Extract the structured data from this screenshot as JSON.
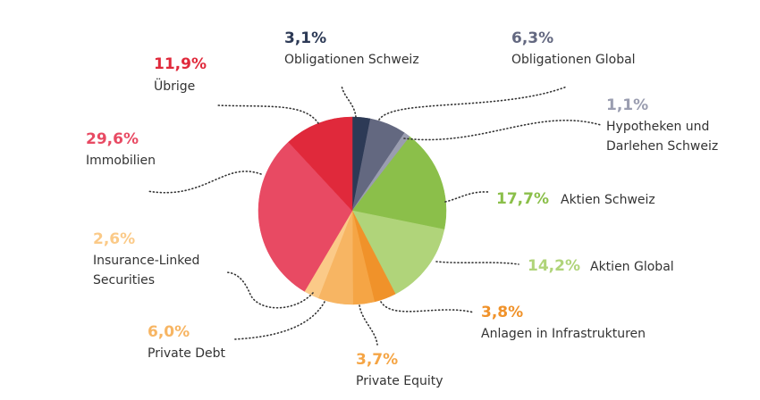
{
  "chart_data": {
    "type": "pie",
    "categories": [
      "Obligationen Schweiz",
      "Obligationen Global",
      "Hypotheken und Darlehen Schweiz",
      "Aktien Schweiz",
      "Aktien Global",
      "Anlagen in Infrastrukturen",
      "Private Equity",
      "Private Debt",
      "Insurance-Linked Securities",
      "Immobilien",
      "Übrige"
    ],
    "values": [
      3.1,
      6.3,
      1.1,
      17.7,
      14.2,
      3.8,
      3.7,
      6.0,
      2.6,
      29.6,
      11.9
    ],
    "value_labels": [
      "3,1%",
      "6,3%",
      "1,1%",
      "17,7%",
      "14,2%",
      "3,8%",
      "3,7%",
      "6,0%",
      "2,6%",
      "29,6%",
      "11,9%"
    ],
    "colors": [
      "#2d3a56",
      "#636880",
      "#9a9db0",
      "#8bbf4a",
      "#b0d47a",
      "#f0922a",
      "#f5a545",
      "#f7b563",
      "#fbca88",
      "#e84a63",
      "#e0293b"
    ]
  }
}
